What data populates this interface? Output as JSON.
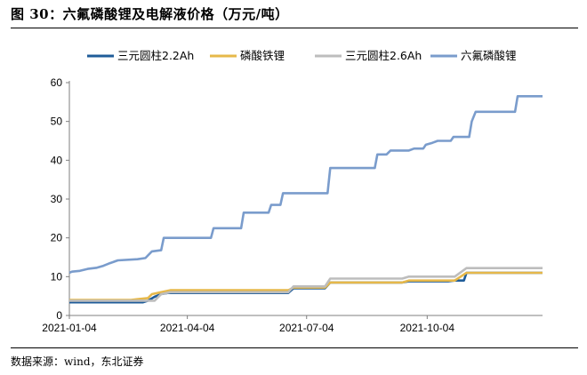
{
  "figure": {
    "title": "图 30：六氟磷酸锂及电解液价格（万元/吨）",
    "source": "数据来源：wind，东北证券"
  },
  "chart_data": {
    "type": "line",
    "title": "",
    "xlabel": "",
    "ylabel": "",
    "ylim": [
      0,
      60
    ],
    "yticks": [
      0,
      10,
      20,
      30,
      40,
      50,
      60
    ],
    "xlim": [
      "2021-01-04",
      "2021-12-31"
    ],
    "xticks": [
      "2021-01-04",
      "2021-04-04",
      "2021-07-04",
      "2021-10-04"
    ],
    "grid": false,
    "legend": "top",
    "series": [
      {
        "name": "三元圆柱2.2Ah",
        "color": "#1f5c99",
        "points": [
          [
            "2021-01-04",
            3.4
          ],
          [
            "2021-03-01",
            3.4
          ],
          [
            "2021-03-05",
            3.8
          ],
          [
            "2021-03-10",
            4.8
          ],
          [
            "2021-03-15",
            5.5
          ],
          [
            "2021-03-20",
            5.8
          ],
          [
            "2021-06-20",
            5.8
          ],
          [
            "2021-06-24",
            7.0
          ],
          [
            "2021-07-18",
            7.0
          ],
          [
            "2021-07-22",
            8.5
          ],
          [
            "2021-09-15",
            8.5
          ],
          [
            "2021-09-20",
            8.8
          ],
          [
            "2021-10-20",
            8.8
          ],
          [
            "2021-10-25",
            9.0
          ],
          [
            "2021-11-01",
            9.0
          ],
          [
            "2021-11-03",
            11.0
          ],
          [
            "2021-12-31",
            11.0
          ]
        ]
      },
      {
        "name": "磷酸铁锂",
        "color": "#e6b84a",
        "points": [
          [
            "2021-01-04",
            4.0
          ],
          [
            "2021-02-20",
            4.0
          ],
          [
            "2021-02-25",
            4.2
          ],
          [
            "2021-03-05",
            4.5
          ],
          [
            "2021-03-08",
            5.5
          ],
          [
            "2021-03-15",
            6.0
          ],
          [
            "2021-03-22",
            6.5
          ],
          [
            "2021-06-20",
            6.5
          ],
          [
            "2021-06-24",
            7.2
          ],
          [
            "2021-07-18",
            7.2
          ],
          [
            "2021-07-22",
            8.5
          ],
          [
            "2021-09-15",
            8.5
          ],
          [
            "2021-09-20",
            9.0
          ],
          [
            "2021-10-25",
            9.0
          ],
          [
            "2021-11-03",
            11.0
          ],
          [
            "2021-12-31",
            11.0
          ]
        ]
      },
      {
        "name": "三元圆柱2.6Ah",
        "color": "#bdbdbd",
        "points": [
          [
            "2021-01-04",
            3.8
          ],
          [
            "2021-03-10",
            3.8
          ],
          [
            "2021-03-15",
            5.5
          ],
          [
            "2021-03-22",
            6.0
          ],
          [
            "2021-06-20",
            6.0
          ],
          [
            "2021-06-24",
            7.5
          ],
          [
            "2021-07-18",
            7.5
          ],
          [
            "2021-07-22",
            9.5
          ],
          [
            "2021-09-15",
            9.5
          ],
          [
            "2021-09-20",
            10.0
          ],
          [
            "2021-10-25",
            10.0
          ],
          [
            "2021-11-03",
            12.2
          ],
          [
            "2021-12-31",
            12.2
          ]
        ]
      },
      {
        "name": "六氟磷酸锂",
        "color": "#7a9ccc",
        "points": [
          [
            "2021-01-04",
            11.0
          ],
          [
            "2021-01-06",
            11.3
          ],
          [
            "2021-01-12",
            11.5
          ],
          [
            "2021-01-18",
            12.0
          ],
          [
            "2021-01-25",
            12.3
          ],
          [
            "2021-01-30",
            12.8
          ],
          [
            "2021-02-04",
            13.5
          ],
          [
            "2021-02-10",
            14.2
          ],
          [
            "2021-02-25",
            14.5
          ],
          [
            "2021-03-03",
            14.8
          ],
          [
            "2021-03-08",
            16.5
          ],
          [
            "2021-03-15",
            16.8
          ],
          [
            "2021-03-17",
            20.0
          ],
          [
            "2021-04-22",
            20.0
          ],
          [
            "2021-04-24",
            22.5
          ],
          [
            "2021-05-15",
            22.5
          ],
          [
            "2021-05-17",
            26.5
          ],
          [
            "2021-06-05",
            26.5
          ],
          [
            "2021-06-07",
            28.5
          ],
          [
            "2021-06-14",
            28.5
          ],
          [
            "2021-06-16",
            31.5
          ],
          [
            "2021-07-20",
            31.5
          ],
          [
            "2021-07-22",
            38.0
          ],
          [
            "2021-08-25",
            38.0
          ],
          [
            "2021-08-27",
            41.5
          ],
          [
            "2021-09-03",
            41.5
          ],
          [
            "2021-09-06",
            42.5
          ],
          [
            "2021-09-20",
            42.5
          ],
          [
            "2021-09-24",
            43.0
          ],
          [
            "2021-10-01",
            43.0
          ],
          [
            "2021-10-03",
            44.0
          ],
          [
            "2021-10-08",
            44.5
          ],
          [
            "2021-10-12",
            45.0
          ],
          [
            "2021-10-22",
            45.0
          ],
          [
            "2021-10-24",
            46.0
          ],
          [
            "2021-11-05",
            46.0
          ],
          [
            "2021-11-07",
            50.0
          ],
          [
            "2021-11-10",
            52.5
          ],
          [
            "2021-12-10",
            52.5
          ],
          [
            "2021-12-12",
            56.5
          ],
          [
            "2021-12-31",
            56.5
          ]
        ]
      }
    ]
  }
}
